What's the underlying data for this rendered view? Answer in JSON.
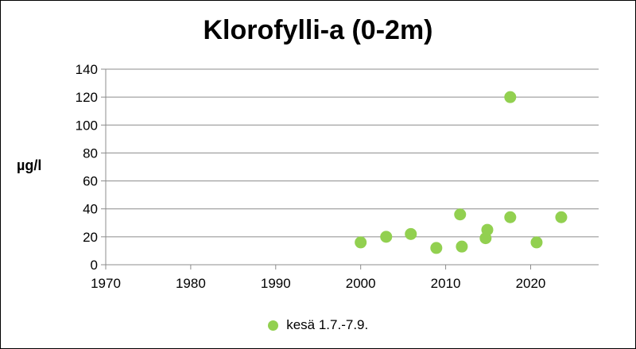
{
  "chart_data": {
    "type": "scatter",
    "title": "Klorofylli-a (0-2m)",
    "xlabel": "",
    "ylabel": "µg/l",
    "xlim": [
      1970,
      2028
    ],
    "ylim": [
      0,
      140
    ],
    "xticks": [
      1970,
      1980,
      1990,
      2000,
      2010,
      2020
    ],
    "yticks": [
      0,
      20,
      40,
      60,
      80,
      100,
      120,
      140
    ],
    "grid": "horizontal",
    "legend_position": "bottom",
    "series": [
      {
        "name": "kesä 1.7.-7.9.",
        "color": "#92d050",
        "points": [
          {
            "x": 2000.0,
            "y": 16
          },
          {
            "x": 2003.0,
            "y": 20
          },
          {
            "x": 2005.9,
            "y": 22
          },
          {
            "x": 2008.9,
            "y": 12
          },
          {
            "x": 2011.7,
            "y": 36
          },
          {
            "x": 2011.9,
            "y": 13
          },
          {
            "x": 2014.7,
            "y": 19
          },
          {
            "x": 2014.9,
            "y": 25
          },
          {
            "x": 2017.6,
            "y": 120
          },
          {
            "x": 2017.6,
            "y": 34
          },
          {
            "x": 2020.7,
            "y": 16
          },
          {
            "x": 2023.6,
            "y": 34
          }
        ]
      }
    ]
  }
}
